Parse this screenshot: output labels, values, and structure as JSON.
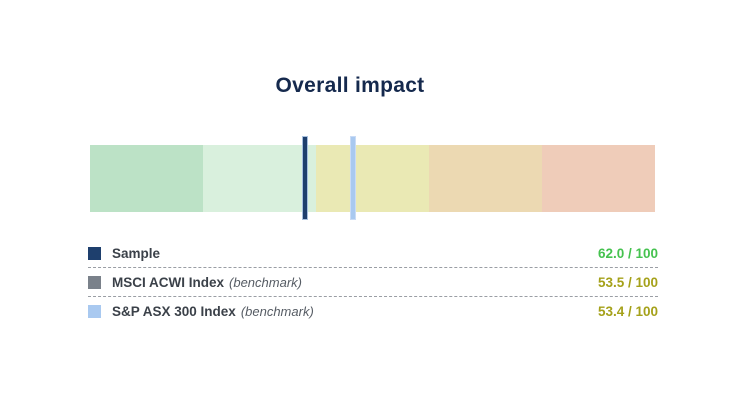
{
  "title": "Overall impact",
  "chart_data": {
    "type": "bar",
    "title": "Overall impact",
    "orientation": "horizontal-gauge",
    "axis": {
      "min": 0,
      "max": 100,
      "inverted": true,
      "note": "higher scores plot toward the green (left) end; no tick labels shown"
    },
    "bands": [
      {
        "name": "band-green",
        "color": "#bce2c6",
        "span_pct": 20
      },
      {
        "name": "band-light-green",
        "color": "#d9f0dd",
        "span_pct": 20
      },
      {
        "name": "band-yellow",
        "color": "#eae9b4",
        "span_pct": 20
      },
      {
        "name": "band-tan",
        "color": "#ecd9b2",
        "span_pct": 20
      },
      {
        "name": "band-salmon",
        "color": "#efccb9",
        "span_pct": 20
      }
    ],
    "series": [
      {
        "name": "Sample",
        "qualifier": "",
        "value": 62.0,
        "max": 100,
        "display": "62.0 / 100",
        "marker_color": "#1e3f6d",
        "value_color": "#45c24f"
      },
      {
        "name": "MSCI ACWI Index",
        "qualifier": "(benchmark)",
        "value": 53.5,
        "max": 100,
        "display": "53.5 / 100",
        "marker_color": "#7a818a",
        "value_color": "#a5a11a"
      },
      {
        "name": "S&P ASX 300 Index",
        "qualifier": "(benchmark)",
        "value": 53.4,
        "max": 100,
        "display": "53.4 / 100",
        "marker_color": "#a9c9f0",
        "value_color": "#a5a11a"
      }
    ],
    "legend_position": "below"
  },
  "colors": {
    "title": "#15294d",
    "label": "#3b4149",
    "qualifier": "#565c64",
    "separator": "#9a9ea4",
    "background": "#ffffff"
  }
}
